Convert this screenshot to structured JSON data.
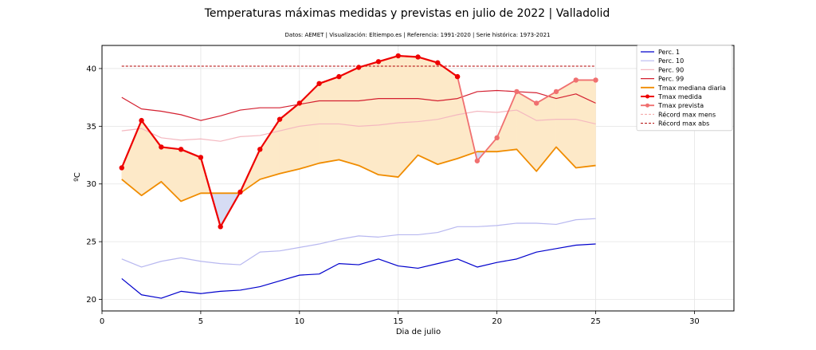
{
  "chart_data": {
    "type": "line",
    "title": "Temperaturas máximas medidas y previstas en julio de 2022 | Valladolid",
    "subtitle": "Datos: AEMET | Visualización: Eltiempo.es | Referencia: 1991-2020 | Serie histórica: 1973-2021",
    "xlabel": "Dia de julio",
    "ylabel": "ºC",
    "xlim": [
      0,
      32
    ],
    "ylim": [
      19,
      42
    ],
    "xticks": [
      0,
      5,
      10,
      15,
      20,
      25,
      30
    ],
    "yticks": [
      20,
      25,
      30,
      35,
      40
    ],
    "grid": true,
    "legend_position": "top-right",
    "x": [
      1,
      2,
      3,
      4,
      5,
      6,
      7,
      8,
      9,
      10,
      11,
      12,
      13,
      14,
      15,
      16,
      17,
      18,
      19,
      20,
      21,
      22,
      23,
      24,
      25
    ],
    "series": [
      {
        "name": "Perc. 1",
        "color": "#0000cc",
        "width": 1.2,
        "values": [
          21.8,
          20.4,
          20.1,
          20.7,
          20.5,
          20.7,
          20.8,
          21.1,
          21.6,
          22.1,
          22.2,
          23.1,
          23.0,
          23.5,
          22.9,
          22.7,
          23.1,
          23.5,
          22.8,
          23.2,
          23.5,
          24.1,
          24.4,
          24.7,
          24.8
        ]
      },
      {
        "name": "Perc. 10",
        "color": "#b8b8f0",
        "width": 1.2,
        "values": [
          23.5,
          22.8,
          23.3,
          23.6,
          23.3,
          23.1,
          23.0,
          24.1,
          24.2,
          24.5,
          24.8,
          25.2,
          25.5,
          25.4,
          25.6,
          25.6,
          25.8,
          26.3,
          26.3,
          26.4,
          26.6,
          26.6,
          26.5,
          26.9,
          27.0
        ]
      },
      {
        "name": "Perc. 90",
        "color": "#f4b8c0",
        "width": 1.2,
        "values": [
          34.6,
          34.8,
          34.0,
          33.8,
          33.9,
          33.7,
          34.1,
          34.2,
          34.6,
          35.0,
          35.2,
          35.2,
          35.0,
          35.1,
          35.3,
          35.4,
          35.6,
          36.0,
          36.3,
          36.2,
          36.4,
          35.5,
          35.6,
          35.6,
          35.2
        ]
      },
      {
        "name": "Perc. 99",
        "color": "#d42030",
        "width": 1.2,
        "values": [
          37.5,
          36.5,
          36.3,
          36.0,
          35.5,
          35.9,
          36.4,
          36.6,
          36.6,
          36.9,
          37.2,
          37.2,
          37.2,
          37.4,
          37.4,
          37.4,
          37.2,
          37.4,
          38.0,
          38.1,
          38.0,
          37.9,
          37.4,
          37.8,
          37.0
        ]
      },
      {
        "name": "Tmax mediana diaria",
        "color": "#f08c00",
        "width": 1.8,
        "values": [
          30.4,
          29.0,
          30.2,
          28.5,
          29.2,
          29.2,
          29.2,
          30.4,
          30.9,
          31.3,
          31.8,
          32.1,
          31.6,
          30.8,
          30.6,
          32.5,
          31.7,
          32.2,
          32.8,
          32.8,
          33.0,
          31.1,
          33.2,
          31.4,
          31.6
        ]
      },
      {
        "name": "Tmax medida",
        "color": "#ee0000",
        "width": 2.2,
        "markers": true,
        "x": [
          1,
          2,
          3,
          4,
          5,
          6,
          7,
          8,
          9,
          10,
          11,
          12,
          13,
          14,
          15,
          16,
          17,
          18
        ],
        "values": [
          31.4,
          35.5,
          33.2,
          33.0,
          32.3,
          26.3,
          29.3,
          33.0,
          35.6,
          37.0,
          38.7,
          39.3,
          40.1,
          40.6,
          41.1,
          41.0,
          40.5,
          39.3
        ]
      },
      {
        "name": "Tmax prevista",
        "color": "#f07070",
        "width": 1.8,
        "markers": true,
        "x": [
          18,
          19,
          20,
          21,
          22,
          23,
          24,
          25
        ],
        "values": [
          39.3,
          32.0,
          34.0,
          38.0,
          37.0,
          38.0,
          39.0,
          39.0
        ]
      },
      {
        "name": "Récord max mens",
        "color": "#f4a0a0",
        "width": 1.0,
        "dashed": true,
        "x": [
          1,
          25
        ],
        "values": [
          40.2,
          40.2
        ]
      },
      {
        "name": "Récord max abs",
        "color": "#b00000",
        "width": 1.0,
        "dashed": true,
        "x": [
          1,
          25
        ],
        "values": [
          40.2,
          40.2
        ]
      }
    ],
    "fill_above_color": "#fde9c8",
    "fill_below_color": "#d6dcf4"
  }
}
